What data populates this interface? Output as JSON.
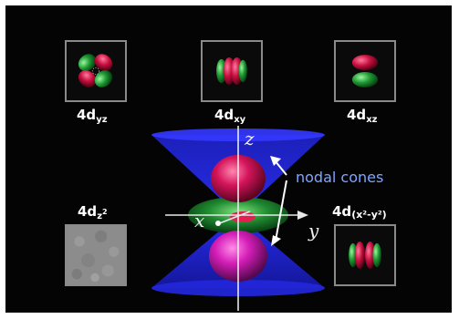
{
  "orbitals": {
    "yz": {
      "base": "4d",
      "sub": "yz"
    },
    "xy": {
      "base": "4d",
      "sub": "xy"
    },
    "xz": {
      "base": "4d",
      "sub": "xz"
    },
    "z2": {
      "base": "4d",
      "sub": "z",
      "sup": "2"
    },
    "x2y2": {
      "base": "4d",
      "paren": "(x²-y²)"
    }
  },
  "center": {
    "axis_z": "z",
    "axis_x": "x",
    "axis_y": "y",
    "annotation": "nodal cones"
  },
  "colors": {
    "background": "#040404",
    "positive_lobe": "#d0144a",
    "negative_lobe": "#1fa23a",
    "cone": "#2a2ef0",
    "annotation": "#7fa6ff"
  }
}
